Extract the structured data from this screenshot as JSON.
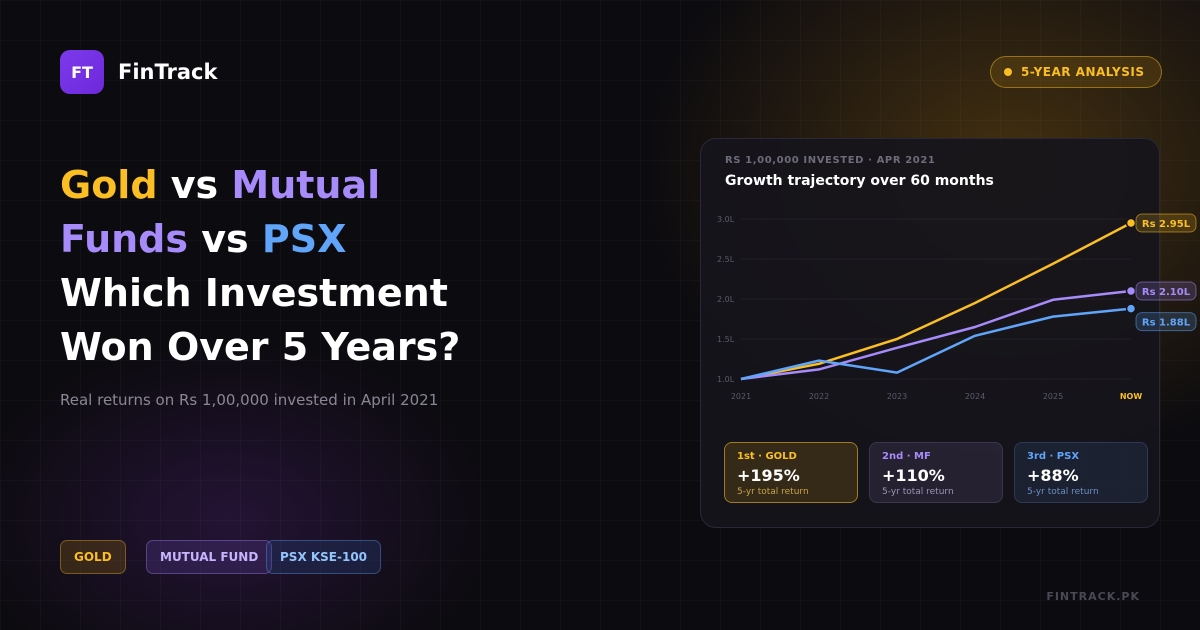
{
  "brand": {
    "logo": "FT",
    "name": "FinTrack"
  },
  "badge": "5-YEAR ANALYSIS",
  "headline": {
    "gold": "Gold",
    "vs1": "vs",
    "mf": "Mutual Funds",
    "vs2": "vs",
    "psx": "PSX",
    "question": "Which Investment Won Over 5 Years?"
  },
  "subtitle": "Real returns on Rs 1,00,000 invested in April 2021",
  "tags": [
    "GOLD",
    "MUTUAL FUND",
    "PSX KSE-100"
  ],
  "footer": "FINTRACK.PK",
  "chart_data": {
    "type": "line",
    "eyebrow": "RS 1,00,000 INVESTED · APR 2021",
    "title": "Growth trajectory over 60 months",
    "categories": [
      "2021",
      "2022",
      "2023",
      "2024",
      "2025",
      "NOW"
    ],
    "ylim": [
      1.0,
      3.0
    ],
    "yticks": [
      {
        "value": 1.0,
        "label": "1.0L"
      },
      {
        "value": 1.5,
        "label": "1.5L"
      },
      {
        "value": 2.0,
        "label": "2.0L"
      },
      {
        "value": 2.5,
        "label": "2.5L"
      },
      {
        "value": 3.0,
        "label": "3.0L"
      }
    ],
    "grid": true,
    "series": [
      {
        "name": "Gold",
        "color": "#fbbf24",
        "values": [
          1.0,
          1.19,
          1.5,
          1.95,
          2.44,
          2.95
        ],
        "end_label": "Rs 2.95L"
      },
      {
        "name": "Mutual Funds",
        "color": "#a78bfa",
        "values": [
          1.0,
          1.12,
          1.39,
          1.65,
          1.99,
          2.1
        ],
        "end_label": "Rs 2.10L"
      },
      {
        "name": "PSX",
        "color": "#60a5fa",
        "values": [
          1.0,
          1.23,
          1.08,
          1.54,
          1.78,
          1.88
        ],
        "end_label": "Rs 1.88L"
      }
    ],
    "cards": [
      {
        "rank": "1st · GOLD",
        "value": "+195%",
        "caption": "5-yr total return"
      },
      {
        "rank": "2nd · MF",
        "value": "+110%",
        "caption": "5-yr total return"
      },
      {
        "rank": "3rd · PSX",
        "value": "+88%",
        "caption": "5-yr total return"
      }
    ]
  }
}
